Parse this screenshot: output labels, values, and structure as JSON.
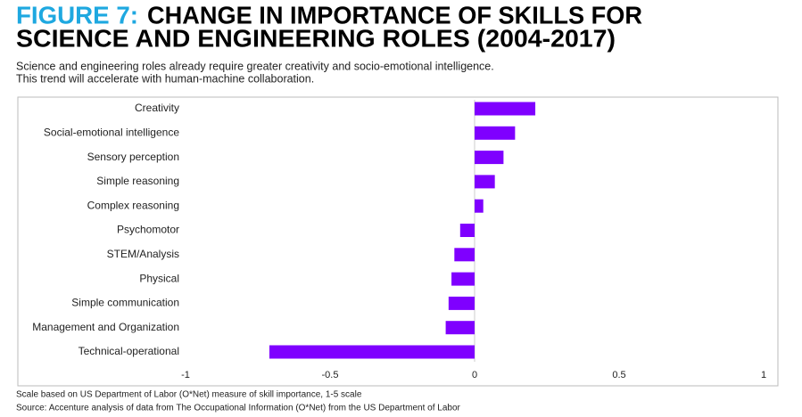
{
  "chart_data": {
    "type": "hbar",
    "title_prefix": "FIGURE 7:",
    "title": [
      "CHANGE IN IMPORTANCE OF SKILLS FOR",
      "SCIENCE AND ENGINEERING ROLES (2004-2017)"
    ],
    "subtitle": [
      "Science and engineering roles already require greater creativity and socio-emotional intelligence.",
      "This trend will accelerate with human-machine collaboration."
    ],
    "notes": [
      "Scale based on US Department of Labor (O*Net) measure of skill importance, 1-5 scale",
      "Source: Accenture analysis of data from The Occupational Information (O*Net) from the US Department of Labor"
    ],
    "categories": [
      "Creativity",
      "Social-emotional intelligence",
      "Sensory perception",
      "Simple reasoning",
      "Complex reasoning",
      "Psychomotor",
      "STEM/Analysis",
      "Physical",
      "Simple communication",
      "Management and Organization",
      "Technical-operational"
    ],
    "values": [
      0.21,
      0.14,
      0.1,
      0.07,
      0.03,
      -0.05,
      -0.07,
      -0.08,
      -0.09,
      -0.1,
      -0.71
    ],
    "color": "#7f00ff",
    "title_color": "#1ea8e0",
    "xlim": [
      -1,
      1
    ],
    "xticks": [
      -1,
      -0.5,
      0,
      0.5,
      1
    ]
  }
}
